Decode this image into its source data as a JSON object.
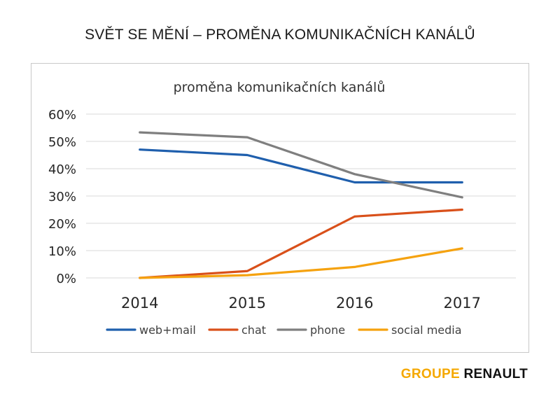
{
  "slide": {
    "title": "SVĚT SE MĚNÍ – PROMĚNA KOMUNIKAČNÍCH KANÁLŮ"
  },
  "brand": {
    "part1": "GROUPE",
    "part2": "RENAULT",
    "color1": "#f5a800",
    "color2": "#111111"
  },
  "chart_data": {
    "type": "line",
    "title": "proměna komunikačních kanálů",
    "xlabel": "",
    "ylabel": "",
    "categories": [
      "2014",
      "2015",
      "2016",
      "2017"
    ],
    "ylim": [
      0,
      0.6
    ],
    "yticks": [
      0,
      0.1,
      0.2,
      0.3,
      0.4,
      0.5,
      0.6
    ],
    "ytick_labels": [
      "0%",
      "10%",
      "20%",
      "30%",
      "40%",
      "50%",
      "60%"
    ],
    "grid": true,
    "legend_position": "bottom",
    "series": [
      {
        "name": "web+mail",
        "color": "#1f5fad",
        "values": [
          0.47,
          0.45,
          0.35,
          0.35
        ]
      },
      {
        "name": "chat",
        "color": "#d9501a",
        "values": [
          0.0,
          0.025,
          0.225,
          0.25
        ]
      },
      {
        "name": "phone",
        "color": "#7f7f7f",
        "values": [
          0.533,
          0.515,
          0.38,
          0.295
        ]
      },
      {
        "name": "social media",
        "color": "#f5a20f",
        "values": [
          0.0,
          0.01,
          0.04,
          0.108
        ]
      }
    ]
  }
}
